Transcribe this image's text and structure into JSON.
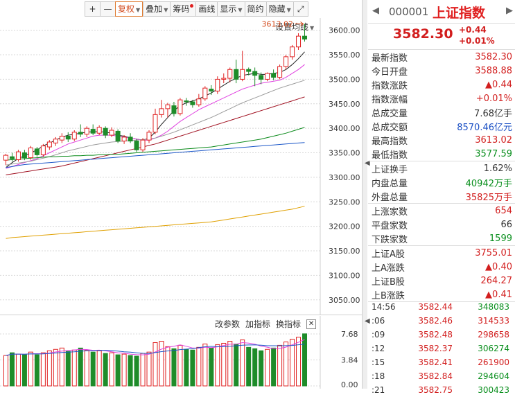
{
  "toolbar": {
    "plus": "+",
    "minus": "—",
    "items": [
      "复权",
      "叠加",
      "筹码",
      "画线",
      "显示",
      "简约",
      "隐藏"
    ],
    "expand_glyph": "⤢"
  },
  "settings_ma_label": "设置均线",
  "chart_data": {
    "type": "candlestick",
    "ylim": [
      3020,
      3625
    ],
    "y_ticks": [
      "3600.00",
      "3550.00",
      "3500.00",
      "3450.00",
      "3400.00",
      "3350.00",
      "3300.00",
      "3250.00",
      "3200.00",
      "3150.00",
      "3100.00",
      "3050.00"
    ],
    "high_annotation": "3613.02",
    "candles": [
      [
        3335,
        3345,
        3325,
        3348
      ],
      [
        3342,
        3338,
        3332,
        3350
      ],
      [
        3336,
        3352,
        3332,
        3356
      ],
      [
        3350,
        3340,
        3335,
        3356
      ],
      [
        3340,
        3360,
        3336,
        3364
      ],
      [
        3358,
        3346,
        3342,
        3362
      ],
      [
        3346,
        3364,
        3342,
        3368
      ],
      [
        3362,
        3372,
        3356,
        3376
      ],
      [
        3370,
        3378,
        3364,
        3382
      ],
      [
        3376,
        3384,
        3370,
        3390
      ],
      [
        3384,
        3378,
        3372,
        3392
      ],
      [
        3378,
        3392,
        3374,
        3396
      ],
      [
        3392,
        3388,
        3382,
        3408
      ],
      [
        3388,
        3400,
        3382,
        3404
      ],
      [
        3398,
        3390,
        3386,
        3408
      ],
      [
        3390,
        3402,
        3386,
        3406
      ],
      [
        3400,
        3386,
        3380,
        3404
      ],
      [
        3386,
        3396,
        3382,
        3402
      ],
      [
        3394,
        3374,
        3370,
        3398
      ],
      [
        3374,
        3382,
        3368,
        3386
      ],
      [
        3382,
        3374,
        3370,
        3390
      ],
      [
        3374,
        3356,
        3352,
        3378
      ],
      [
        3356,
        3376,
        3352,
        3380
      ],
      [
        3376,
        3392,
        3370,
        3396
      ],
      [
        3392,
        3428,
        3388,
        3440
      ],
      [
        3428,
        3440,
        3422,
        3458
      ],
      [
        3440,
        3448,
        3422,
        3452
      ],
      [
        3446,
        3430,
        3424,
        3454
      ],
      [
        3430,
        3458,
        3426,
        3462
      ],
      [
        3456,
        3454,
        3446,
        3462
      ],
      [
        3454,
        3448,
        3442,
        3458
      ],
      [
        3448,
        3460,
        3444,
        3470
      ],
      [
        3460,
        3482,
        3456,
        3486
      ],
      [
        3480,
        3476,
        3468,
        3488
      ],
      [
        3476,
        3500,
        3470,
        3506
      ],
      [
        3500,
        3502,
        3492,
        3512
      ],
      [
        3502,
        3520,
        3494,
        3524
      ],
      [
        3520,
        3500,
        3492,
        3540
      ],
      [
        3500,
        3520,
        3496,
        3558
      ],
      [
        3520,
        3516,
        3508,
        3524
      ],
      [
        3516,
        3508,
        3486,
        3524
      ],
      [
        3508,
        3500,
        3490,
        3514
      ],
      [
        3500,
        3512,
        3496,
        3514
      ],
      [
        3512,
        3504,
        3498,
        3520
      ],
      [
        3504,
        3526,
        3500,
        3530
      ],
      [
        3526,
        3546,
        3520,
        3550
      ],
      [
        3546,
        3566,
        3540,
        3570
      ],
      [
        3566,
        3588,
        3560,
        3594
      ],
      [
        3588,
        3582,
        3577,
        3613
      ]
    ],
    "ma_lines": [
      {
        "color": "#222222",
        "values": [
          3320,
          3330,
          3338,
          3344,
          3350,
          3356,
          3364,
          3370,
          3376,
          3382,
          3386,
          3388,
          3390,
          3392,
          3393,
          3393,
          3392,
          3390,
          3386,
          3384,
          3380,
          3378,
          3376,
          3380,
          3392,
          3408,
          3422,
          3436,
          3446,
          3452,
          3456,
          3460,
          3466,
          3472,
          3480,
          3488,
          3496,
          3502,
          3508,
          3510,
          3512,
          3510,
          3510,
          3512,
          3514,
          3520,
          3530,
          3542,
          3556
        ]
      },
      {
        "color": "#e040e0",
        "values": [
          3318,
          3322,
          3326,
          3330,
          3334,
          3338,
          3344,
          3350,
          3356,
          3362,
          3368,
          3372,
          3376,
          3380,
          3384,
          3386,
          3386,
          3386,
          3384,
          3382,
          3380,
          3378,
          3376,
          3376,
          3380,
          3386,
          3394,
          3404,
          3414,
          3422,
          3430,
          3438,
          3444,
          3450,
          3456,
          3462,
          3468,
          3474,
          3480,
          3484,
          3488,
          3492,
          3494,
          3496,
          3498,
          3504,
          3512,
          3520,
          3530
        ]
      },
      {
        "color": "#999999",
        "values": [
          3325,
          3327,
          3329,
          3331,
          3333,
          3336,
          3339,
          3342,
          3346,
          3350,
          3354,
          3357,
          3360,
          3363,
          3366,
          3368,
          3370,
          3372,
          3373,
          3374,
          3375,
          3376,
          3377,
          3378,
          3380,
          3384,
          3388,
          3392,
          3397,
          3402,
          3407,
          3412,
          3417,
          3422,
          3428,
          3434,
          3440,
          3446,
          3452,
          3457,
          3462,
          3467,
          3472,
          3477,
          3482,
          3486,
          3490,
          3494,
          3498
        ]
      },
      {
        "color": "#a01020",
        "values": [
          3305,
          3307,
          3309,
          3311,
          3313,
          3315,
          3317,
          3319,
          3321,
          3323,
          3326,
          3329,
          3332,
          3335,
          3338,
          3341,
          3344,
          3347,
          3350,
          3353,
          3356,
          3359,
          3362,
          3365,
          3368,
          3372,
          3376,
          3380,
          3384,
          3388,
          3392,
          3396,
          3400,
          3404,
          3408,
          3412,
          3416,
          3420,
          3424,
          3428,
          3432,
          3436,
          3440,
          3444,
          3448,
          3452,
          3456,
          3460,
          3464
        ]
      },
      {
        "color": "#0a8a1a",
        "values": [
          3335,
          3336,
          3337,
          3338,
          3339,
          3340,
          3341,
          3342,
          3342,
          3343,
          3343,
          3344,
          3344,
          3345,
          3345,
          3346,
          3346,
          3347,
          3347,
          3348,
          3349,
          3350,
          3351,
          3352,
          3353,
          3354,
          3355,
          3356,
          3357,
          3358,
          3359,
          3360,
          3361,
          3362,
          3364,
          3366,
          3368,
          3370,
          3372,
          3374,
          3376,
          3378,
          3381,
          3384,
          3387,
          3390,
          3394,
          3398,
          3402
        ]
      },
      {
        "color": "#1a56c8",
        "values": [
          3320,
          3322,
          3324,
          3326,
          3327,
          3328,
          3329,
          3330,
          3331,
          3332,
          3333,
          3334,
          3335,
          3336,
          3337,
          3338,
          3339,
          3340,
          3341,
          3342,
          3343,
          3344,
          3345,
          3346,
          3347,
          3348,
          3349,
          3350,
          3351,
          3352,
          3353,
          3354,
          3355,
          3356,
          3357,
          3358,
          3359,
          3360,
          3361,
          3362,
          3363,
          3364,
          3365,
          3366,
          3367,
          3368,
          3369,
          3370,
          3371
        ]
      },
      {
        "color": "#e0a000",
        "values": [
          3175,
          3177,
          3178,
          3179,
          3180,
          3181,
          3182,
          3183,
          3184,
          3185,
          3186,
          3187,
          3188,
          3189,
          3190,
          3191,
          3192,
          3193,
          3194,
          3195,
          3196,
          3197,
          3198,
          3199,
          3200,
          3201,
          3202,
          3203,
          3204,
          3205,
          3206,
          3207,
          3208,
          3209,
          3211,
          3213,
          3215,
          3217,
          3219,
          3221,
          3223,
          3225,
          3227,
          3229,
          3231,
          3233,
          3235,
          3238,
          3241
        ]
      }
    ],
    "volume": {
      "ylim": [
        0,
        8.5
      ],
      "y_ticks": [
        "7.68",
        "3.84",
        "0.00"
      ],
      "values": [
        4.5,
        4.9,
        4.7,
        4.6,
        5.0,
        4.6,
        4.9,
        5.2,
        5.4,
        5.6,
        5.1,
        5.3,
        5.6,
        5.3,
        5.0,
        5.2,
        4.8,
        4.9,
        4.6,
        4.7,
        4.5,
        4.4,
        4.8,
        5.0,
        6.4,
        6.6,
        5.8,
        5.5,
        6.0,
        5.4,
        5.3,
        5.7,
        6.2,
        5.6,
        6.1,
        6.3,
        6.6,
        6.2,
        6.8,
        5.7,
        5.5,
        5.2,
        5.4,
        5.6,
        6.0,
        6.5,
        6.9,
        7.2,
        7.7
      ]
    }
  },
  "vol_toolbar": {
    "items": [
      "改参数",
      "加指标",
      "换指标"
    ],
    "close": "✕"
  },
  "panel": {
    "nav_left": "◀",
    "nav_right": "▶",
    "code": "000001",
    "name": "上证指数",
    "price": "3582.30",
    "change": "+0.44",
    "change_pct": "+0.01%",
    "groups": [
      [
        {
          "label": "最新指数",
          "value": "3582.30",
          "cls": "red"
        },
        {
          "label": "今日开盘",
          "value": "3588.88",
          "cls": "red"
        },
        {
          "label": "指数涨跌",
          "value": "▲0.44",
          "cls": "red"
        },
        {
          "label": "指数涨幅",
          "value": "+0.01%",
          "cls": "red"
        },
        {
          "label": "总成交量",
          "value": "7.68亿手",
          "cls": "black"
        },
        {
          "label": "总成交额",
          "value": "8570.46亿元",
          "cls": "blue"
        },
        {
          "label": "最高指数",
          "value": "3613.02",
          "cls": "red"
        },
        {
          "label": "最低指数",
          "value": "3577.59",
          "cls": "green"
        }
      ],
      [
        {
          "label": "上证换手",
          "value": "1.62%",
          "cls": "black"
        },
        {
          "label": "内盘总量",
          "value": "40942万手",
          "cls": "green"
        },
        {
          "label": "外盘总量",
          "value": "35825万手",
          "cls": "red"
        }
      ],
      [
        {
          "label": "上涨家数",
          "value": "654",
          "cls": "red"
        },
        {
          "label": "平盘家数",
          "value": "66",
          "cls": "black"
        },
        {
          "label": "下跌家数",
          "value": "1599",
          "cls": "green"
        }
      ],
      [
        {
          "label": "上证A股",
          "value": "3755.01",
          "cls": "red"
        },
        {
          "label": "上A涨跌",
          "value": "▲0.40",
          "cls": "red"
        },
        {
          "label": "上证B股",
          "value": "264.27",
          "cls": "red"
        },
        {
          "label": "上B涨跌",
          "value": "▲0.41",
          "cls": "red"
        }
      ]
    ],
    "ticks": [
      {
        "time": "14:56",
        "price": "3582.44",
        "vol": "348083",
        "vcls": "green"
      },
      {
        "time": ":06",
        "price": "3582.46",
        "vol": "314533",
        "vcls": "red"
      },
      {
        "time": ":09",
        "price": "3582.48",
        "vol": "298658",
        "vcls": "red"
      },
      {
        "time": ":12",
        "price": "3582.37",
        "vol": "306274",
        "vcls": "green"
      },
      {
        "time": ":15",
        "price": "3582.41",
        "vol": "261900",
        "vcls": "red"
      },
      {
        "time": ":18",
        "price": "3582.84",
        "vol": "294604",
        "vcls": "green"
      },
      {
        "time": ":21",
        "price": "3582.75",
        "vol": "300423",
        "vcls": "green"
      }
    ]
  }
}
